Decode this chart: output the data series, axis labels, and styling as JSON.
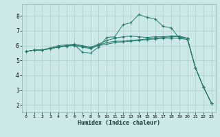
{
  "xlabel": "Humidex (Indice chaleur)",
  "ylabel": "",
  "bg_color": "#cce8e8",
  "grid_color": "#aacece",
  "line_color": "#267b6e",
  "xlim": [
    -0.5,
    23.5
  ],
  "ylim": [
    1.5,
    8.8
  ],
  "xticks": [
    0,
    1,
    2,
    3,
    4,
    5,
    6,
    7,
    8,
    9,
    10,
    11,
    12,
    13,
    14,
    15,
    16,
    17,
    18,
    19,
    20,
    21,
    22,
    23
  ],
  "yticks": [
    2,
    3,
    4,
    5,
    6,
    7,
    8
  ],
  "series": [
    {
      "x": [
        0,
        1,
        2,
        3,
        4,
        5,
        6,
        7,
        8,
        9,
        10,
        11,
        12,
        13,
        14,
        15,
        16,
        17,
        18,
        19,
        20,
        21,
        22,
        23
      ],
      "y": [
        5.6,
        5.7,
        5.7,
        5.8,
        5.9,
        6.0,
        6.0,
        5.9,
        5.8,
        6.0,
        6.1,
        6.2,
        6.25,
        6.3,
        6.35,
        6.4,
        6.45,
        6.5,
        6.5,
        6.5,
        6.4,
        4.5,
        3.2,
        2.1
      ]
    },
    {
      "x": [
        0,
        1,
        2,
        3,
        4,
        5,
        6,
        7,
        8,
        9,
        10,
        11,
        12,
        13,
        14,
        15,
        16,
        17,
        18,
        19,
        20,
        21,
        22,
        23
      ],
      "y": [
        5.6,
        5.7,
        5.7,
        5.8,
        5.9,
        6.0,
        6.05,
        5.95,
        5.85,
        6.05,
        6.2,
        6.3,
        6.3,
        6.35,
        6.4,
        6.45,
        6.5,
        6.55,
        6.6,
        6.6,
        6.5,
        4.5,
        3.2,
        2.1
      ]
    },
    {
      "x": [
        0,
        1,
        2,
        3,
        4,
        5,
        6,
        7,
        8,
        9,
        10,
        11,
        12,
        13,
        14,
        15,
        16,
        17,
        18,
        19,
        20,
        21,
        22,
        23
      ],
      "y": [
        5.6,
        5.7,
        5.7,
        5.85,
        6.0,
        6.05,
        6.1,
        6.0,
        5.9,
        6.1,
        6.35,
        6.5,
        6.6,
        6.65,
        6.6,
        6.55,
        6.6,
        6.6,
        6.65,
        6.65,
        6.5,
        4.5,
        3.2,
        2.1
      ]
    },
    {
      "x": [
        0,
        1,
        2,
        3,
        4,
        5,
        6,
        7,
        8,
        9,
        10,
        11,
        12,
        13,
        14,
        15,
        16,
        17,
        18,
        19,
        20,
        21,
        22,
        23
      ],
      "y": [
        5.6,
        5.7,
        5.7,
        5.8,
        5.9,
        5.95,
        6.05,
        5.55,
        5.5,
        5.9,
        6.55,
        6.6,
        7.4,
        7.55,
        8.1,
        7.9,
        7.8,
        7.3,
        7.2,
        6.5,
        6.5,
        4.5,
        3.2,
        2.1
      ]
    }
  ]
}
